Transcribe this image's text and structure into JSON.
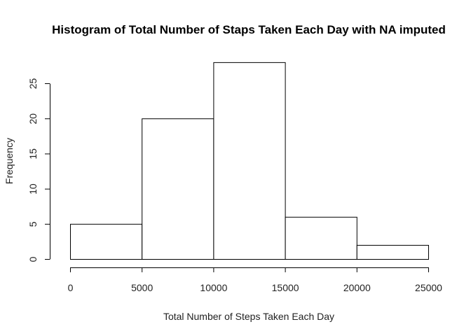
{
  "chart_data": {
    "type": "bar",
    "title": "Histogram of Total Number of Staps Taken Each Day with NA imputed",
    "xlabel": "Total Number of Steps Taken Each Day",
    "ylabel": "Frequency",
    "bins": [
      {
        "from": 0,
        "to": 5000,
        "count": 5
      },
      {
        "from": 5000,
        "to": 10000,
        "count": 20
      },
      {
        "from": 10000,
        "to": 15000,
        "count": 28
      },
      {
        "from": 15000,
        "to": 20000,
        "count": 6
      },
      {
        "from": 20000,
        "to": 25000,
        "count": 2
      }
    ],
    "xlim": [
      0,
      25000
    ],
    "ylim": [
      0,
      28
    ],
    "x_ticks": [
      0,
      5000,
      10000,
      15000,
      20000,
      25000
    ],
    "y_ticks": [
      0,
      5,
      10,
      15,
      20,
      25
    ],
    "grid": false,
    "legend": "none"
  }
}
